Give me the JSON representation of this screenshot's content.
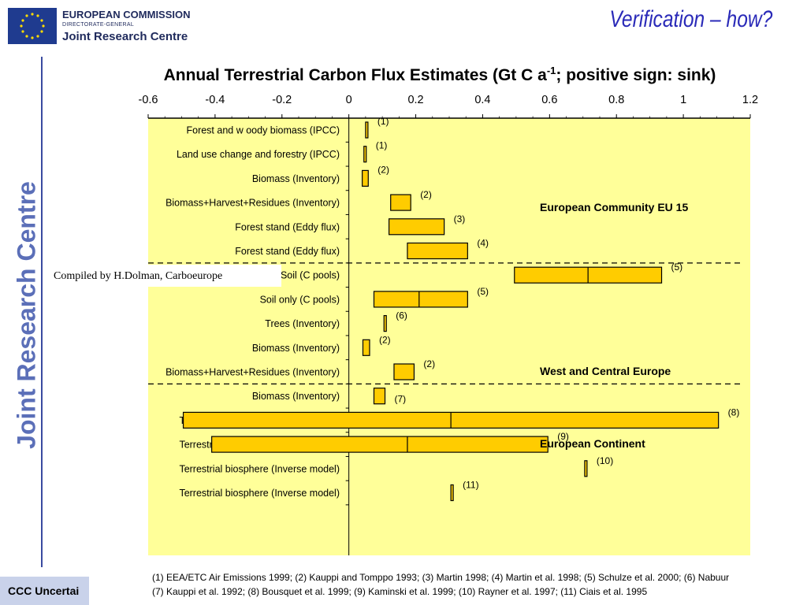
{
  "header": {
    "org_line1": "EUROPEAN COMMISSION",
    "org_line2": "DIRECTORATE-GENERAL",
    "org_line3": "Joint Research Centre",
    "slide_title": "Verification – how?",
    "side_banner": "Joint Research Centre"
  },
  "compiled_by": "Compiled by H.Dolman, Carboeurope",
  "footer": {
    "text": "CCC Uncertai"
  },
  "references": {
    "line1": "(1) EEA/ETC Air Emissions 1999; (2) Kauppi and Tomppo 1993; (3) Martin 1998; (4) Martin et al. 1998; (5) Schulze et al. 2000; (6) Nabuur",
    "line2": "(7) Kauppi et al. 1992; (8) Bousquet et al. 1999; (9) Kaminski et al. 1999; (10) Rayner et al. 1997; (11) Ciais et al. 1995"
  },
  "colors": {
    "plot_background": "#ffff99",
    "bar_fill": "#ffcc00",
    "banner_blue": "#5b6fb8",
    "title_blue": "#2a2ab8"
  },
  "chart_data": {
    "type": "bar",
    "orientation": "horizontal",
    "title_main": "Annual Terrestrial Carbon Flux Estimates (Gt C a",
    "title_sup": "-1",
    "title_end": "; positive sign: sink)",
    "xlim": [
      -0.6,
      1.2
    ],
    "x_ticks": [
      "-0.6",
      "-0.4",
      "-0.2",
      "0",
      "0.2",
      "0.4",
      "0.6",
      "0.8",
      "1",
      "1.2"
    ],
    "x_tick_values": [
      -0.6,
      -0.4,
      -0.2,
      0,
      0.2,
      0.4,
      0.6,
      0.8,
      1.0,
      1.2
    ],
    "bars": [
      {
        "label": "Forest and w oody biomass (IPCC)",
        "min": 0.05,
        "max": 0.055,
        "ref": "(1)",
        "group": 0
      },
      {
        "label": "Land use change and forestry (IPCC)",
        "min": 0.045,
        "max": 0.05,
        "ref": "(1)",
        "group": 0
      },
      {
        "label": "Biomass (Inventory)",
        "min": 0.04,
        "max": 0.058,
        "ref": "(2)",
        "group": 0
      },
      {
        "label": "Biomass+Harvest+Residues (Inventory)",
        "min": 0.125,
        "max": 0.185,
        "ref": "(2)",
        "group": 0
      },
      {
        "label": "Forest stand (Eddy flux)",
        "min": 0.12,
        "max": 0.285,
        "ref": "(3)",
        "group": 0
      },
      {
        "label": "Forest stand (Eddy flux)",
        "min": 0.175,
        "max": 0.355,
        "ref": "(4)",
        "group": 0
      },
      {
        "label": "Biomass+Soil (C pools)",
        "min": 0.495,
        "max": 0.935,
        "mid": 0.715,
        "ref": "(5)",
        "group": 1
      },
      {
        "label": "Soil only (C pools)",
        "min": 0.075,
        "max": 0.355,
        "mid": 0.21,
        "ref": "(5)",
        "group": 1
      },
      {
        "label": "Trees (Inventory)",
        "min": 0.105,
        "max": 0.112,
        "ref": "(6)",
        "group": 1
      },
      {
        "label": "Biomass (Inventory)",
        "min": 0.042,
        "max": 0.062,
        "ref": "(2)",
        "group": 1
      },
      {
        "label": "Biomass+Harvest+Residues (Inventory)",
        "min": 0.135,
        "max": 0.195,
        "ref": "(2)",
        "group": 1
      },
      {
        "label": "Biomass (Inventory)",
        "min": 0.075,
        "max": 0.108,
        "ref": "(7)",
        "group": 2
      },
      {
        "label": "Terrestrial biosphere (Inverse model)",
        "min": -0.495,
        "max": 1.105,
        "mid": 0.305,
        "ref": "(8)",
        "group": 2
      },
      {
        "label": "Terrestrial biosphere (Inverse model)",
        "min": -0.41,
        "max": 0.595,
        "mid": 0.175,
        "ref": "(9)",
        "group": 2
      },
      {
        "label": "Terrestrial biosphere (Inverse model)",
        "min": 0.705,
        "max": 0.71,
        "ref": "(10)",
        "group": 2
      },
      {
        "label": "Terrestrial biosphere (Inverse model)",
        "min": 0.305,
        "max": 0.308,
        "ref": "(11)",
        "group": 2
      }
    ],
    "regions": [
      {
        "name": "European Community EU 15"
      },
      {
        "name": "West and Central Europe"
      },
      {
        "name": "European Continent"
      }
    ]
  }
}
